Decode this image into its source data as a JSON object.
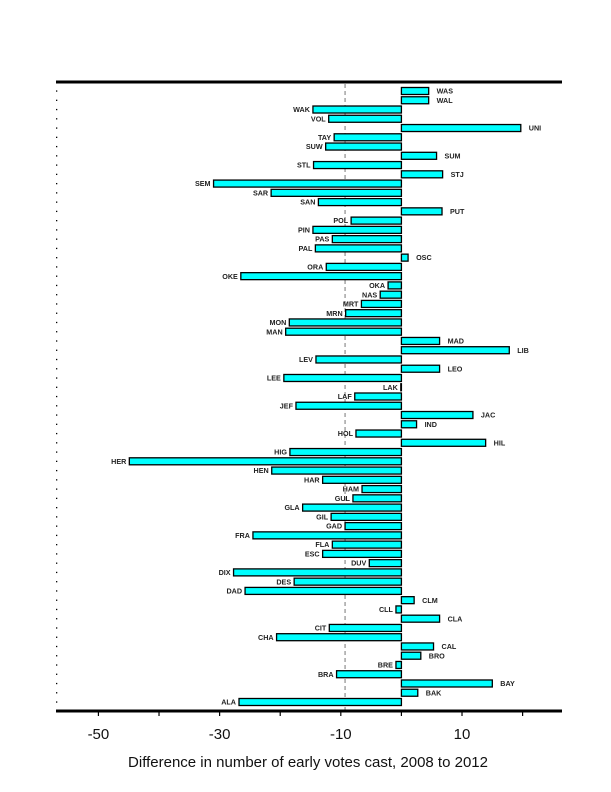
{
  "chart_data": {
    "type": "bar",
    "orientation": "horizontal",
    "title": "",
    "xlabel": "Difference in number of early votes cast, 2008 to 2012",
    "ylabel": "",
    "xlim": [
      -57,
      26.5
    ],
    "xticks": [
      -50,
      -40,
      -30,
      -20,
      -10,
      0,
      10,
      20
    ],
    "xtick_labels": [
      "-50",
      "",
      "-30",
      "",
      "-10",
      "",
      "10",
      ""
    ],
    "reference_line": {
      "value": -9.3,
      "style": "dashed"
    },
    "bar_color": "#00ffff",
    "grid": false,
    "legend": "none",
    "categories": [
      "WAS",
      "WAL",
      "WAK",
      "VOL",
      "UNI",
      "TAY",
      "SUW",
      "SUM",
      "STL",
      "STJ",
      "SEM",
      "SAR",
      "SAN",
      "PUT",
      "POL",
      "PIN",
      "PAS",
      "PAL",
      "OSC",
      "ORA",
      "OKE",
      "OKA",
      "NAS",
      "MRT",
      "MRN",
      "MON",
      "MAN",
      "MAD",
      "LIB",
      "LEV",
      "LEO",
      "LEE",
      "LAK",
      "LAF",
      "JEF",
      "JAC",
      "IND",
      "HOL",
      "HIL",
      "HIG",
      "HER",
      "HEN",
      "HAR",
      "HAM",
      "GUL",
      "GLA",
      "GIL",
      "GAD",
      "FRA",
      "FLA",
      "ESC",
      "DUV",
      "DIX",
      "DES",
      "DAD",
      "CLM",
      "CLL",
      "CLA",
      "CIT",
      "CHA",
      "CAL",
      "BRO",
      "BRE",
      "BRA",
      "BAY",
      "BAK",
      "ALA"
    ],
    "values": [
      4.5,
      4.5,
      -14.6,
      -12.0,
      19.7,
      -11.1,
      -12.5,
      5.8,
      -14.5,
      6.8,
      -31.0,
      -21.5,
      -13.7,
      6.7,
      -8.3,
      -14.6,
      -11.4,
      -14.2,
      1.1,
      -12.4,
      -26.5,
      -2.2,
      -3.5,
      -6.6,
      -9.2,
      -18.5,
      -19.1,
      6.3,
      17.8,
      -14.1,
      6.3,
      -19.4,
      -0.1,
      -7.7,
      -17.4,
      11.8,
      2.5,
      -7.5,
      13.9,
      -18.4,
      -44.9,
      -21.4,
      -13.0,
      -6.5,
      -8.0,
      -16.3,
      -11.6,
      -9.3,
      -24.5,
      -11.4,
      -13.0,
      -5.3,
      -27.7,
      -17.7,
      -25.8,
      2.1,
      -0.9,
      6.3,
      -11.9,
      -20.6,
      5.3,
      3.2,
      -0.9,
      -10.7,
      15.0,
      2.7,
      -26.8
    ]
  }
}
